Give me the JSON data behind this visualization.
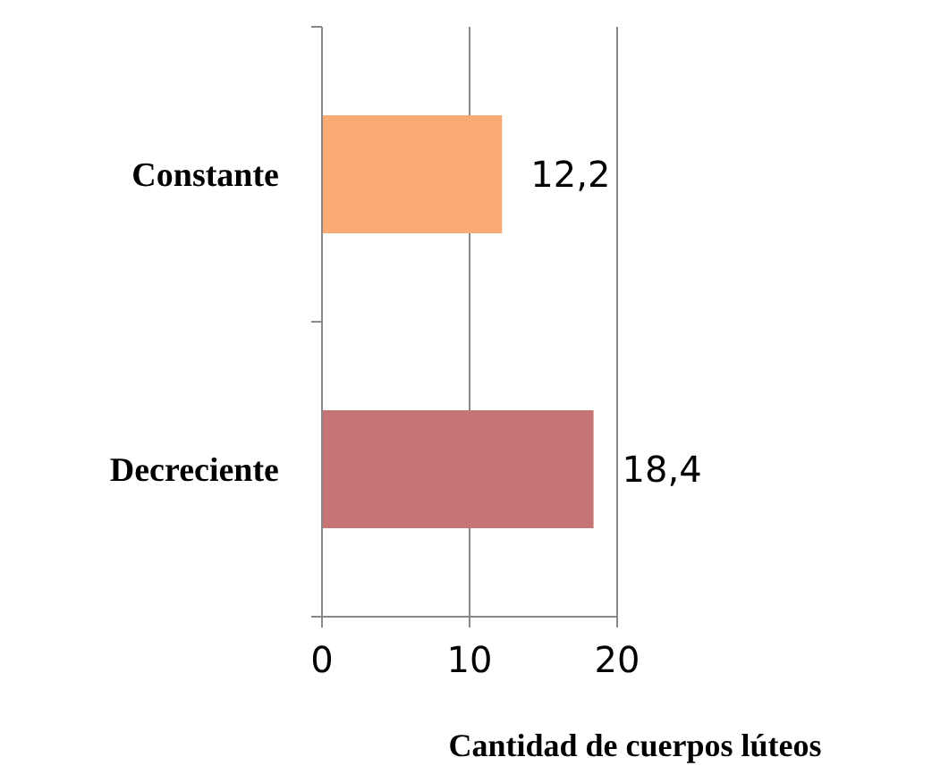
{
  "chart_data": {
    "type": "bar",
    "orientation": "horizontal",
    "categories": [
      "Constante",
      "Decreciente"
    ],
    "values": [
      12.2,
      18.4
    ],
    "colors": [
      "#f9ab73",
      "#c77474"
    ],
    "value_labels": [
      "12,2",
      "18,4"
    ],
    "xlim": [
      0,
      20
    ],
    "xticks": [
      0,
      10,
      20
    ],
    "grid": "x",
    "xlabel": "Cantidad de cuerpos lúteos"
  }
}
